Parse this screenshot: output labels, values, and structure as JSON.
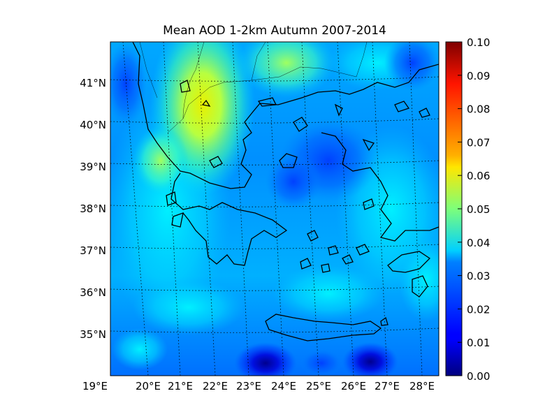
{
  "title": "Mean AOD 1-2km Autumn 2007-2014",
  "map": {
    "region": "Greece / Aegean Sea",
    "lon_range": [
      19,
      28.5
    ],
    "lat_range": [
      34.2,
      42
    ],
    "lat_ticks": [
      "41°N",
      "40°N",
      "39°N",
      "38°N",
      "37°N",
      "36°N",
      "35°N"
    ],
    "lon_ticks": [
      "19°E",
      "20°E",
      "21°E",
      "22°E",
      "23°E",
      "24°E",
      "25°E",
      "26°E",
      "27°E",
      "28°E"
    ],
    "grid": true,
    "colormap": "jet"
  },
  "colorbar": {
    "ticks": [
      "0.10",
      "0.09",
      "0.08",
      "0.07",
      "0.06",
      "0.05",
      "0.04",
      "0.03",
      "0.02",
      "0.01",
      "0.00"
    ],
    "range": [
      0.0,
      0.1
    ]
  }
}
